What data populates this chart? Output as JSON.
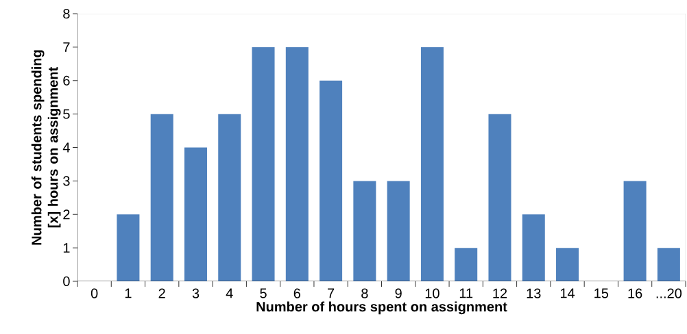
{
  "chart_data": {
    "type": "bar",
    "xlabel": "Number of hours spent on assignment",
    "ylabel": "Number of students spending [x] hours on assignment",
    "categories": [
      "0",
      "1",
      "2",
      "3",
      "4",
      "5",
      "6",
      "7",
      "8",
      "9",
      "10",
      "11",
      "12",
      "13",
      "14",
      "15",
      "16",
      "...20"
    ],
    "values": [
      0,
      2,
      5,
      4,
      5,
      7,
      7,
      6,
      3,
      3,
      7,
      1,
      5,
      2,
      1,
      0,
      3,
      1
    ],
    "color": "#4f81bd",
    "ylim": [
      0,
      8
    ],
    "yticks": [
      0,
      1,
      2,
      3,
      4,
      5,
      6,
      7,
      8
    ],
    "grid": false
  }
}
